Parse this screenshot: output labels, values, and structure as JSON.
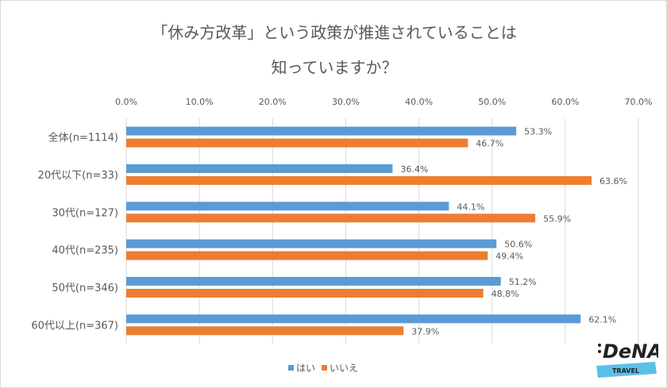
{
  "chart_data": {
    "type": "bar",
    "orientation": "horizontal",
    "title_lines": [
      "「休み方改革」という政策が推進されていることは",
      "知っていますか？"
    ],
    "categories": [
      "全体(n=1114)",
      "20代以下(n=33)",
      "30代(n=127)",
      "40代(n=235)",
      "50代(n=346)",
      "60代以上(n=367)"
    ],
    "series": [
      {
        "name": "はい",
        "color": "#5b9bd5",
        "values": [
          53.3,
          36.4,
          44.1,
          50.6,
          51.2,
          62.1
        ],
        "labels": [
          "53.3%",
          "36.4%",
          "44.1%",
          "50.6%",
          "51.2%",
          "62.1%"
        ]
      },
      {
        "name": "いいえ",
        "color": "#ed7d31",
        "values": [
          46.7,
          63.6,
          55.9,
          49.4,
          48.8,
          37.9
        ],
        "labels": [
          "46.7%",
          "63.6%",
          "55.9%",
          "49.4%",
          "48.8%",
          "37.9%"
        ]
      }
    ],
    "xlim": [
      0,
      70
    ],
    "xticks": [
      "0.0%",
      "10.0%",
      "20.0%",
      "30.0%",
      "40.0%",
      "50.0%",
      "60.0%",
      "70.0%"
    ],
    "axis_position": "top",
    "grid": true,
    "legend": "bottom"
  },
  "logo": {
    "brand": "DeNA",
    "sub": "TRAVEL"
  }
}
